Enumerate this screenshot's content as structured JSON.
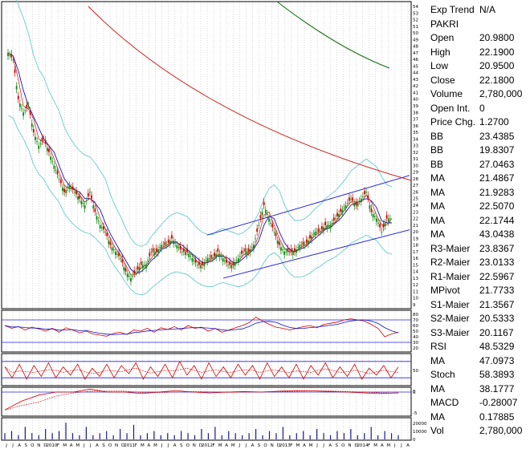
{
  "chart_data": {
    "type": "candlestick",
    "ticker": "PAKRI",
    "x_labels": [
      "J",
      "J",
      "A",
      "S",
      "O",
      "N",
      "D",
      "2010",
      "F",
      "M",
      "A",
      "M",
      "J",
      "J",
      "A",
      "S",
      "O",
      "N",
      "D",
      "2011",
      "F",
      "M",
      "A",
      "M",
      "J",
      "J",
      "A",
      "S",
      "O",
      "N",
      "D",
      "2012",
      "F",
      "M",
      "A",
      "M",
      "J",
      "J",
      "A",
      "S",
      "O",
      "N",
      "D",
      "2013",
      "F",
      "M",
      "A",
      "M",
      "J",
      "J",
      "A",
      "S",
      "O",
      "N",
      "D",
      "2014",
      "F",
      "M",
      "A",
      "M",
      "J",
      "J",
      "A"
    ],
    "price_axis": {
      "min": 9,
      "max": 54,
      "ticks": [
        54,
        53,
        52,
        51,
        50,
        49,
        48,
        47,
        46,
        45,
        44,
        43,
        42,
        41,
        40,
        39,
        38,
        37,
        36,
        35,
        34,
        33,
        32,
        31,
        30,
        29,
        28,
        27,
        26,
        25,
        24,
        23,
        22,
        21,
        20,
        19,
        18,
        17,
        16,
        15,
        14,
        13,
        12,
        11,
        10,
        9
      ]
    },
    "rsi_axis_ticks": [
      80,
      70,
      60,
      50,
      40,
      30,
      20
    ],
    "stoch_axis_ticks": [
      50,
      0
    ],
    "macd_axis_ticks": [
      0,
      -5
    ],
    "volume_axis_ticks": [
      20000,
      10000,
      0
    ],
    "close_path": [
      47,
      46,
      40,
      38,
      39,
      35,
      33,
      34,
      32,
      30,
      28,
      26,
      27,
      26,
      25,
      24,
      26,
      23,
      21,
      20,
      18,
      17,
      16,
      14,
      13,
      14,
      15,
      15,
      17,
      17,
      18,
      18,
      19,
      18,
      17,
      17,
      16,
      15,
      15,
      16,
      16,
      17,
      16,
      15,
      15,
      16,
      17,
      17,
      18,
      21,
      24,
      22,
      20,
      18,
      17,
      17,
      17,
      18,
      18,
      19,
      20,
      20,
      21,
      21,
      22,
      23,
      24,
      25,
      24,
      25,
      26,
      23,
      22,
      20,
      22,
      22
    ],
    "rsi_path": [
      60,
      55,
      58,
      52,
      57,
      54,
      50,
      55,
      48,
      56,
      52,
      47,
      50,
      45,
      43,
      41,
      46,
      48,
      44,
      52,
      50,
      55,
      48,
      56,
      53,
      58,
      52,
      60,
      55,
      57,
      50,
      55,
      48,
      52,
      56,
      60,
      65,
      75,
      68,
      62,
      57,
      55,
      52,
      55,
      58,
      60,
      56,
      62,
      64,
      66,
      70,
      72,
      70,
      68,
      62,
      55,
      40,
      45,
      48
    ],
    "stoch_path": [
      60,
      20,
      70,
      15,
      65,
      25,
      75,
      20,
      60,
      30,
      70,
      15,
      55,
      25,
      70,
      20,
      65,
      35,
      75,
      15,
      60,
      25,
      70,
      20,
      80,
      30,
      65,
      15,
      75,
      25,
      60,
      20,
      70,
      30,
      65,
      15,
      75,
      25,
      60,
      20,
      70,
      15,
      65,
      30,
      75,
      20,
      60,
      25,
      70,
      15,
      55,
      30,
      65,
      20,
      60
    ],
    "macd_path": [
      -6,
      -3,
      -1,
      0,
      0,
      1,
      0,
      0,
      -0.5,
      0,
      0.5,
      0,
      -0.3,
      0,
      0.2,
      0,
      0.3,
      0.5,
      0.4,
      0.2,
      0,
      -0.3,
      -0.5,
      -0.28
    ],
    "volume_path": [
      3,
      4,
      2,
      6,
      3,
      2,
      5,
      3,
      4,
      8,
      3,
      2,
      6,
      2,
      3,
      4,
      2,
      5,
      3,
      7,
      2,
      3,
      4,
      2,
      3,
      2,
      4,
      3,
      2,
      5,
      3,
      6,
      2,
      4,
      3,
      2,
      3,
      5,
      2,
      4,
      3,
      6,
      2,
      3,
      4,
      2,
      5,
      3,
      2,
      4,
      3,
      5,
      2,
      3,
      6,
      2,
      4,
      3,
      2
    ]
  },
  "info": [
    {
      "label": "Exp Trend",
      "value": "N/A"
    },
    {
      "label": "PAKRI",
      "value": ""
    },
    {
      "label": "Open",
      "value": "20.9800"
    },
    {
      "label": "High",
      "value": "22.1900"
    },
    {
      "label": "Low",
      "value": "20.9500"
    },
    {
      "label": "Close",
      "value": "22.1800"
    },
    {
      "label": "Volume",
      "value": "2,780,000"
    },
    {
      "label": "Open Int.",
      "value": "0"
    },
    {
      "label": "Price Chg.",
      "value": "1.2700"
    },
    {
      "label": "BB",
      "value": "23.4385"
    },
    {
      "label": "BB",
      "value": "19.8307"
    },
    {
      "label": "BB",
      "value": "27.0463"
    },
    {
      "label": "MA",
      "value": "21.4867"
    },
    {
      "label": "MA",
      "value": "21.9283"
    },
    {
      "label": "MA",
      "value": "22.5070"
    },
    {
      "label": "MA",
      "value": "22.1744"
    },
    {
      "label": "MA",
      "value": "43.0438"
    },
    {
      "label": "R3-Maier",
      "value": "23.8367"
    },
    {
      "label": "R2-Maier",
      "value": "23.0133"
    },
    {
      "label": "R1-Maier",
      "value": "22.5967"
    },
    {
      "label": "MPivot",
      "value": "21.7733"
    },
    {
      "label": "S1-Maier",
      "value": "21.3567"
    },
    {
      "label": "S2-Maier",
      "value": "20.5333"
    },
    {
      "label": "S3-Maier",
      "value": "20.1167"
    },
    {
      "label": "RSI",
      "value": "48.5329"
    },
    {
      "label": "MA",
      "value": "47.0973"
    },
    {
      "label": "Stoch",
      "value": "58.3893"
    },
    {
      "label": "MA",
      "value": "38.1777"
    },
    {
      "label": "MACD",
      "value": "-0.28007"
    },
    {
      "label": "MA",
      "value": "0.17885"
    },
    {
      "label": "Vol",
      "value": "2,780,000"
    }
  ],
  "colors": {
    "up": "#0a8a0a",
    "down": "#d40000",
    "ma_blue": "#1010c0",
    "ma_red": "#d01010",
    "ma_green": "#107010",
    "bb": "#66cccc",
    "channel": "#2020e0"
  }
}
